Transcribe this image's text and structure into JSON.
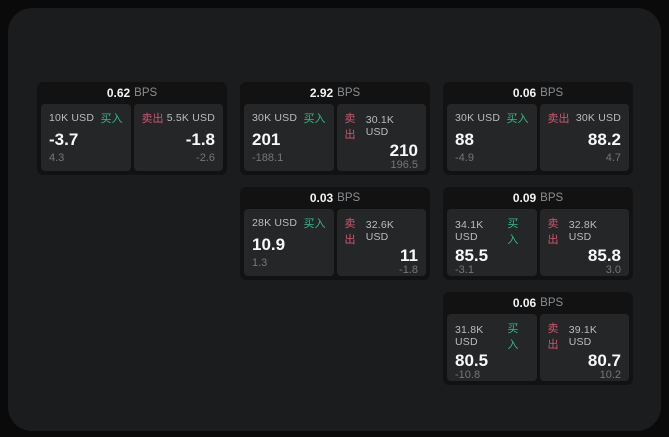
{
  "labels": {
    "bps_unit": "BPS",
    "buy": "买入",
    "sell": "卖出"
  },
  "colors": {
    "buy_accent": "#2ebd85",
    "sell_accent": "#d0556f",
    "panel_bg": "#1b1c1d",
    "card_bg": "#121213",
    "tile_bg": "#252627"
  },
  "cards": [
    {
      "row": 1,
      "col": 1,
      "bps": "0.62",
      "buy": {
        "notional": "10K USD",
        "price": "-3.7",
        "delta": "4.3"
      },
      "sell": {
        "notional": "5.5K USD",
        "price": "-1.8",
        "delta": "-2.6"
      }
    },
    {
      "row": 1,
      "col": 2,
      "bps": "2.92",
      "buy": {
        "notional": "30K USD",
        "price": "201",
        "delta": "-188.1"
      },
      "sell": {
        "notional": "30.1K USD",
        "price": "210",
        "delta": "196.5"
      }
    },
    {
      "row": 1,
      "col": 3,
      "bps": "0.06",
      "buy": {
        "notional": "30K USD",
        "price": "88",
        "delta": "-4.9"
      },
      "sell": {
        "notional": "30K USD",
        "price": "88.2",
        "delta": "4.7"
      }
    },
    {
      "row": 2,
      "col": 2,
      "bps": "0.03",
      "buy": {
        "notional": "28K USD",
        "price": "10.9",
        "delta": "1.3"
      },
      "sell": {
        "notional": "32.6K USD",
        "price": "11",
        "delta": "-1.8"
      }
    },
    {
      "row": 2,
      "col": 3,
      "bps": "0.09",
      "buy": {
        "notional": "34.1K USD",
        "price": "85.5",
        "delta": "-3.1"
      },
      "sell": {
        "notional": "32.8K USD",
        "price": "85.8",
        "delta": "3.0"
      }
    },
    {
      "row": 3,
      "col": 3,
      "bps": "0.06",
      "buy": {
        "notional": "31.8K USD",
        "price": "80.5",
        "delta": "-10.8"
      },
      "sell": {
        "notional": "39.1K USD",
        "price": "80.7",
        "delta": "10.2"
      }
    }
  ]
}
